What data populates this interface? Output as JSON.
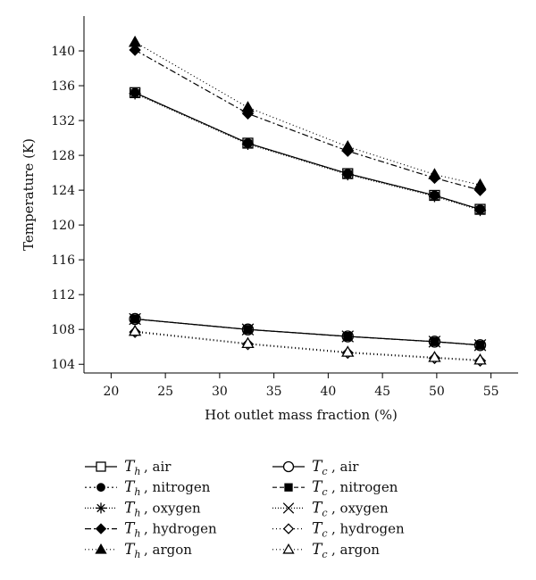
{
  "chart_data": {
    "type": "line",
    "title": "",
    "xlabel": "Hot outlet mass fraction (%)",
    "ylabel": "Temperature (K)",
    "xlim": [
      17.5,
      57.5
    ],
    "ylim": [
      103,
      144
    ],
    "xticks": [
      20,
      25,
      30,
      35,
      40,
      45,
      50,
      55
    ],
    "yticks": [
      104,
      108,
      112,
      116,
      120,
      124,
      128,
      132,
      136,
      140
    ],
    "grid": false,
    "legend_position": "bottom",
    "x": [
      22.2,
      32.6,
      41.8,
      49.8,
      54.0
    ],
    "series": [
      {
        "name": "air",
        "sym": "T",
        "sub": "h",
        "values": [
          135.2,
          129.4,
          125.9,
          123.4,
          121.8
        ],
        "color": "#000000",
        "dash": "",
        "marker": "square-open"
      },
      {
        "name": "nitrogen",
        "sym": "T",
        "sub": "h",
        "values": [
          135.2,
          129.4,
          125.9,
          123.4,
          121.8
        ],
        "color": "#000000",
        "dash": "2,3",
        "marker": "circle-filled"
      },
      {
        "name": "oxygen",
        "sym": "T",
        "sub": "h",
        "values": [
          135.1,
          129.3,
          125.8,
          123.3,
          121.7
        ],
        "color": "#000000",
        "dash": "1,2",
        "marker": "asterisk"
      },
      {
        "name": "hydrogen",
        "sym": "T",
        "sub": "h",
        "values": [
          140.1,
          132.8,
          128.5,
          125.4,
          124.0
        ],
        "color": "#000000",
        "dash": "7,3,2,3",
        "marker": "diamond-filled"
      },
      {
        "name": "argon",
        "sym": "T",
        "sub": "h",
        "values": [
          141.0,
          133.5,
          129.0,
          125.8,
          124.6
        ],
        "color": "#000000",
        "dash": "1,3",
        "marker": "triangle-filled"
      },
      {
        "name": "air",
        "sym": "T",
        "sub": "c",
        "values": [
          109.2,
          108.0,
          107.2,
          106.6,
          106.2
        ],
        "color": "#000000",
        "dash": "",
        "marker": "circle-open"
      },
      {
        "name": "nitrogen",
        "sym": "T",
        "sub": "c",
        "values": [
          109.2,
          108.0,
          107.2,
          106.6,
          106.2
        ],
        "color": "#000000",
        "dash": "5,3",
        "marker": "square-filled"
      },
      {
        "name": "oxygen",
        "sym": "T",
        "sub": "c",
        "values": [
          109.2,
          108.0,
          107.2,
          106.6,
          106.2
        ],
        "color": "#000000",
        "dash": "1,2",
        "marker": "x-cross"
      },
      {
        "name": "hydrogen",
        "sym": "T",
        "sub": "c",
        "values": [
          107.7,
          106.3,
          105.3,
          104.7,
          104.4
        ],
        "color": "#000000",
        "dash": "1,3",
        "marker": "diamond-open"
      },
      {
        "name": "argon",
        "sym": "T",
        "sub": "c",
        "values": [
          107.8,
          106.4,
          105.4,
          104.8,
          104.5
        ],
        "color": "#000000",
        "dash": "1,3",
        "marker": "triangle-open"
      }
    ]
  }
}
